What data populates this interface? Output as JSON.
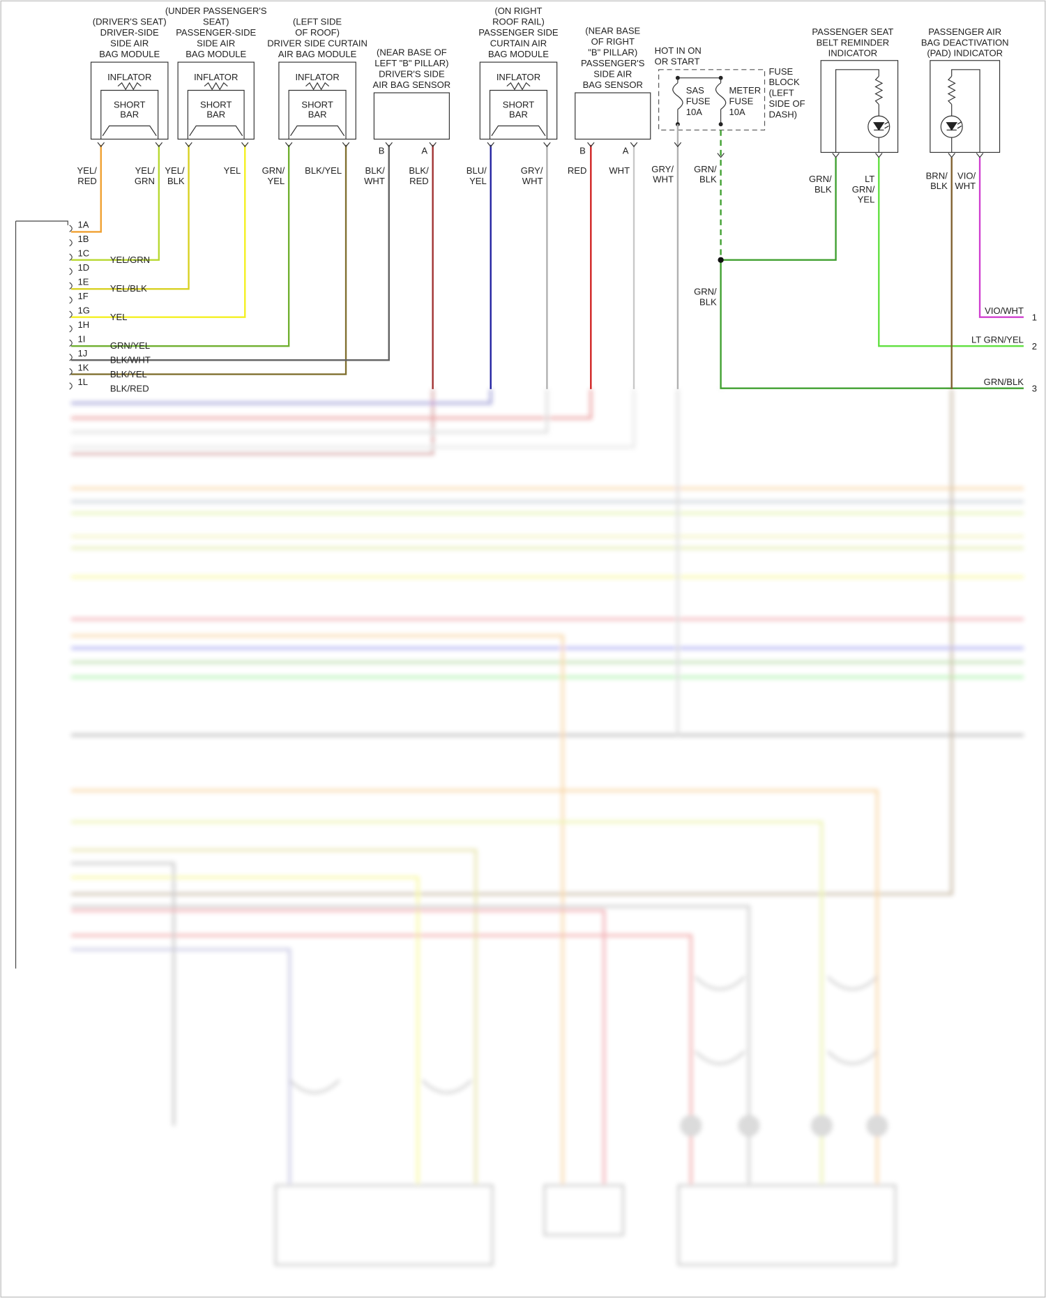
{
  "components": [
    {
      "lines": [
        "(DRIVER'S SEAT)",
        "DRIVER-SIDE",
        "SIDE AIR",
        "BAG MODULE"
      ],
      "inflator": "INFLATOR",
      "short_bar": [
        "SHORT",
        "BAR"
      ]
    },
    {
      "lines": [
        "(UNDER PASSENGER'S",
        "SEAT)",
        "PASSENGER-SIDE",
        "SIDE AIR",
        "BAG MODULE"
      ],
      "inflator": "INFLATOR",
      "short_bar": [
        "SHORT",
        "BAR"
      ]
    },
    {
      "lines": [
        "(LEFT SIDE",
        "OF ROOF)",
        "DRIVER SIDE CURTAIN",
        "AIR BAG MODULE"
      ],
      "inflator": "INFLATOR",
      "short_bar": [
        "SHORT",
        "BAR"
      ]
    },
    {
      "lines": [
        "(NEAR BASE OF",
        "LEFT \"B\" PILLAR)",
        "DRIVER'S SIDE",
        "AIR BAG SENSOR"
      ],
      "pins": [
        "B",
        "A"
      ]
    },
    {
      "lines": [
        "(ON RIGHT",
        "ROOF RAIL)",
        "PASSENGER SIDE",
        "CURTAIN AIR",
        "BAG MODULE"
      ],
      "inflator": "INFLATOR",
      "short_bar": [
        "SHORT",
        "BAR"
      ]
    },
    {
      "lines": [
        "(NEAR BASE",
        "OF RIGHT",
        "\"B\" PILLAR)",
        "PASSENGER'S",
        "SIDE AIR",
        "BAG SENSOR"
      ],
      "pins": [
        "B",
        "A"
      ]
    }
  ],
  "fuse_block": {
    "hot": [
      "HOT IN ON",
      "OR START"
    ],
    "fuses": [
      [
        "SAS",
        "FUSE",
        "10A"
      ],
      [
        "METER",
        "FUSE",
        "10A"
      ]
    ],
    "name": [
      "FUSE",
      "BLOCK",
      "(LEFT",
      "SIDE OF",
      "DASH)"
    ]
  },
  "indicators": [
    {
      "lines": [
        "PASSENGER SEAT",
        "BELT REMINDER",
        "INDICATOR"
      ]
    },
    {
      "lines": [
        "PASSENGER AIR",
        "BAG DEACTIVATION",
        "(PAD) INDICATOR"
      ]
    }
  ],
  "wires": [
    {
      "label": [
        "YEL/",
        "RED"
      ],
      "color": "#f0a030"
    },
    {
      "label": [
        "YEL/",
        "GRN"
      ],
      "color": "#b8d830"
    },
    {
      "label": [
        "YEL/",
        "BLK"
      ],
      "color": "#d8d020"
    },
    {
      "label": [
        "YEL"
      ],
      "color": "#f4f020"
    },
    {
      "label": [
        "GRN/",
        "YEL"
      ],
      "color": "#70b030"
    },
    {
      "label": [
        "BLK/YEL"
      ],
      "color": "#807030"
    },
    {
      "label": [
        "BLK/",
        "WHT"
      ],
      "color": "#606060"
    },
    {
      "label": [
        "BLK/",
        "RED"
      ],
      "color": "#a03030"
    },
    {
      "label": [
        "BLU/",
        "YEL"
      ],
      "color": "#2020a0"
    },
    {
      "label": [
        "GRY/",
        "WHT"
      ],
      "color": "#b0b0b0"
    },
    {
      "label": [
        "RED"
      ],
      "color": "#d02020"
    },
    {
      "label": [
        "WHT"
      ],
      "color": "#c8c8c8"
    },
    {
      "label": [
        "GRY/",
        "WHT"
      ],
      "color": "#b0b0b0"
    },
    {
      "label": [
        "GRN/",
        "BLK"
      ],
      "label2": [
        "GRN/",
        "BLK"
      ],
      "color": "#40a030"
    },
    {
      "label": [
        "GRN/",
        "BLK"
      ],
      "color": "#40a030"
    },
    {
      "label": [
        "LT",
        "GRN/",
        "YEL"
      ],
      "color": "#60e040"
    },
    {
      "label": [
        "BRN/",
        "BLK"
      ],
      "color": "#806030"
    },
    {
      "label": [
        "VIO/",
        "WHT"
      ],
      "color": "#d040d0"
    }
  ],
  "connector_left": {
    "pins": [
      {
        "id": "1A"
      },
      {
        "id": "1B"
      },
      {
        "id": "1C",
        "wire": "YEL/GRN"
      },
      {
        "id": "1D"
      },
      {
        "id": "1E",
        "wire": "YEL/BLK"
      },
      {
        "id": "1F"
      },
      {
        "id": "1G",
        "wire": "YEL"
      },
      {
        "id": "1H"
      },
      {
        "id": "1I",
        "wire": "GRN/YEL"
      },
      {
        "id": "1J",
        "wire": "BLK/WHT"
      },
      {
        "id": "1K",
        "wire": "BLK/YEL"
      },
      {
        "id": "1L",
        "wire": "BLK/RED"
      }
    ]
  },
  "connector_right": {
    "pins": [
      {
        "id": "1",
        "wire": "VIO/WHT"
      },
      {
        "id": "2",
        "wire": "LT GRN/YEL"
      },
      {
        "id": "3",
        "wire": "GRN/BLK"
      }
    ]
  }
}
